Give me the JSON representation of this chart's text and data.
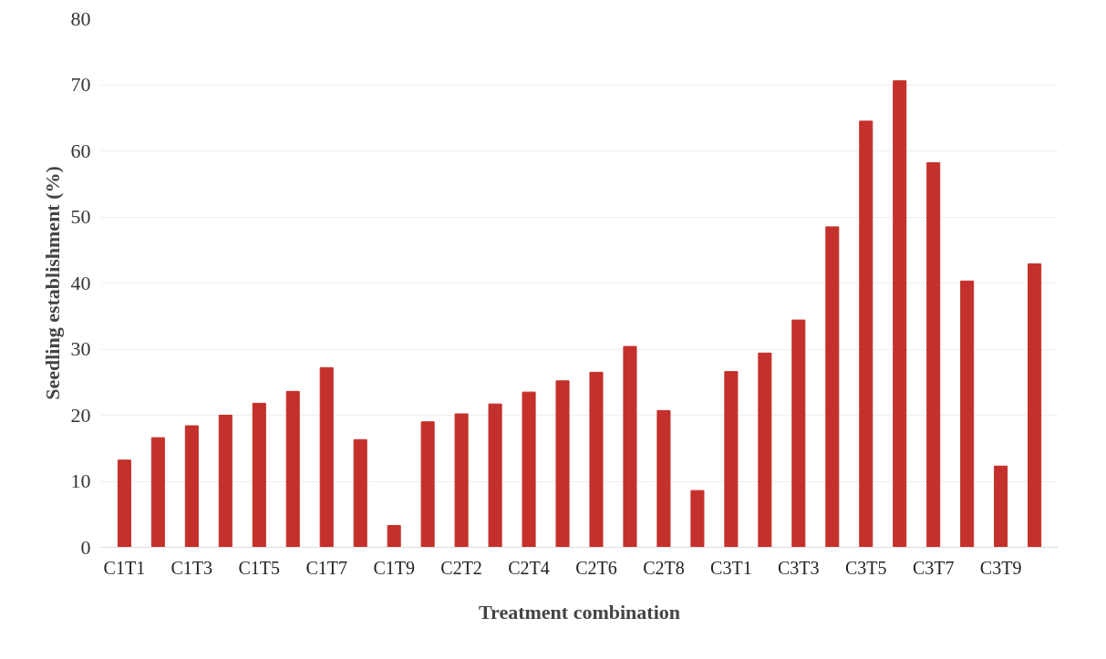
{
  "chart_data": {
    "type": "bar",
    "xlabel": "Treatment combination",
    "ylabel": "Seedling establishment (%)",
    "categories": [
      "C1T1",
      null,
      "C1T3",
      null,
      "C1T5",
      null,
      "C1T7",
      null,
      "C1T9",
      null,
      "C2T2",
      null,
      "C2T4",
      null,
      "C2T6",
      null,
      "C2T8",
      null,
      "C3T1",
      null,
      "C3T3",
      null,
      "C3T5",
      null,
      "C3T7",
      null,
      "C3T9",
      null
    ],
    "values": [
      13.2,
      16.6,
      18.4,
      20.0,
      21.8,
      23.6,
      27.2,
      16.3,
      3.3,
      19.0,
      20.2,
      21.7,
      23.5,
      25.2,
      26.5,
      30.4,
      20.7,
      8.6,
      26.6,
      29.4,
      34.4,
      48.5,
      64.5,
      70.6,
      58.2,
      40.3,
      12.3,
      42.9
    ],
    "color": "#c4302b",
    "ylim": [
      0,
      80
    ],
    "yticks": [
      0,
      10,
      20,
      30,
      40,
      50,
      60,
      70,
      80
    ],
    "grid": "y"
  }
}
